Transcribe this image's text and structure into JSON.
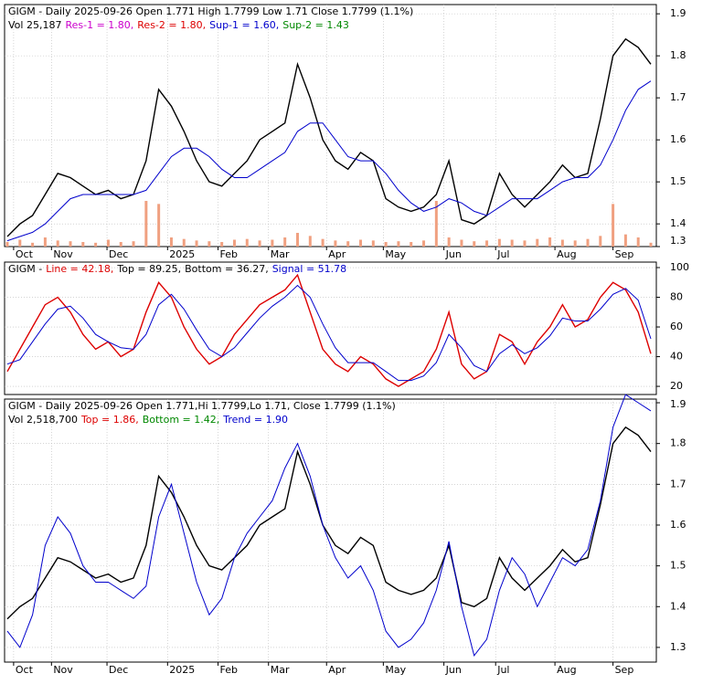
{
  "chart_data": [
    {
      "type": "line",
      "title": "GIGM - Daily 2025-09-26 Open 1.771  High 1.7799  Low 1.71  Close 1.7799 (1.1%)",
      "info": [
        {
          "text": "Vol 25,187",
          "color": "#000000"
        },
        {
          "text": "Res-1 = 1.80,",
          "color": "#cc00cc"
        },
        {
          "text": "Res-2 = 1.80,",
          "color": "#dd0000"
        },
        {
          "text": "Sup-1 = 1.60,",
          "color": "#0000cc"
        },
        {
          "text": "Sup-2 = 1.43",
          "color": "#008800"
        }
      ],
      "xlim": [
        0,
        51
      ],
      "ylim": [
        1.346,
        1.922
      ],
      "yticks": [
        1.3,
        1.4,
        1.5,
        1.6,
        1.7,
        1.8,
        1.9
      ],
      "grid": true,
      "xticks": [
        {
          "value": 0.5,
          "label": "Oct"
        },
        {
          "value": 3.5,
          "label": "Nov"
        },
        {
          "value": 7.9,
          "label": "Dec"
        },
        {
          "value": 12.7,
          "label": "2025"
        },
        {
          "value": 16.7,
          "label": "Feb"
        },
        {
          "value": 20.7,
          "label": "Mar"
        },
        {
          "value": 25.3,
          "label": "Apr"
        },
        {
          "value": 29.8,
          "label": "May"
        },
        {
          "value": 34.6,
          "label": "Jun"
        },
        {
          "value": 38.7,
          "label": "Jul"
        },
        {
          "value": 43.4,
          "label": "Aug"
        },
        {
          "value": 48.0,
          "label": "Sep"
        }
      ],
      "series": [
        {
          "color": "#000000",
          "values": [
            1.37,
            1.4,
            1.42,
            1.47,
            1.52,
            1.51,
            1.49,
            1.47,
            1.48,
            1.46,
            1.47,
            1.55,
            1.72,
            1.68,
            1.62,
            1.55,
            1.5,
            1.49,
            1.52,
            1.55,
            1.6,
            1.62,
            1.64,
            1.78,
            1.7,
            1.6,
            1.55,
            1.53,
            1.57,
            1.55,
            1.46,
            1.44,
            1.43,
            1.44,
            1.47,
            1.55,
            1.41,
            1.4,
            1.42,
            1.52,
            1.47,
            1.44,
            1.47,
            1.5,
            1.54,
            1.51,
            1.52,
            1.65,
            1.8,
            1.84,
            1.82,
            1.78
          ]
        },
        {
          "color": "#0000cc",
          "values": [
            1.36,
            1.37,
            1.38,
            1.4,
            1.43,
            1.46,
            1.47,
            1.47,
            1.47,
            1.47,
            1.47,
            1.48,
            1.52,
            1.56,
            1.58,
            1.58,
            1.56,
            1.53,
            1.51,
            1.51,
            1.53,
            1.55,
            1.57,
            1.62,
            1.64,
            1.64,
            1.6,
            1.56,
            1.55,
            1.55,
            1.52,
            1.48,
            1.45,
            1.43,
            1.44,
            1.46,
            1.45,
            1.43,
            1.42,
            1.44,
            1.46,
            1.46,
            1.46,
            1.48,
            1.5,
            1.51,
            1.51,
            1.54,
            1.6,
            1.67,
            1.72,
            1.74
          ]
        }
      ],
      "volume": {
        "color": "#f0a080",
        "values": [
          30000,
          45000,
          25000,
          60000,
          40000,
          35000,
          30000,
          25000,
          45000,
          30000,
          35000,
          300000,
          280000,
          60000,
          50000,
          40000,
          35000,
          30000,
          45000,
          50000,
          40000,
          45000,
          60000,
          90000,
          70000,
          50000,
          40000,
          35000,
          45000,
          40000,
          30000,
          35000,
          30000,
          40000,
          300000,
          60000,
          45000,
          35000,
          40000,
          50000,
          45000,
          40000,
          50000,
          60000,
          45000,
          40000,
          50000,
          70000,
          280000,
          80000,
          60000,
          25187
        ]
      }
    },
    {
      "type": "line",
      "info": [
        {
          "text": "GIGM -",
          "color": "#000000"
        },
        {
          "text": "Line = 42.18,",
          "color": "#dd0000"
        },
        {
          "text": "Top = 89.25,",
          "color": "#000000"
        },
        {
          "text": "Bottom = 36.27,",
          "color": "#000000"
        },
        {
          "text": "Signal = 51.78",
          "color": "#0000cc"
        }
      ],
      "xlim": [
        0,
        51
      ],
      "ylim": [
        14.5,
        103.7
      ],
      "yticks": [
        20,
        40,
        60,
        80,
        100
      ],
      "grid": true,
      "series": [
        {
          "color": "#dd0000",
          "values": [
            30,
            45,
            60,
            75,
            80,
            70,
            55,
            45,
            50,
            40,
            45,
            70,
            90,
            80,
            60,
            45,
            35,
            40,
            55,
            65,
            75,
            80,
            85,
            95,
            70,
            45,
            35,
            30,
            40,
            35,
            25,
            20,
            25,
            30,
            45,
            70,
            35,
            25,
            30,
            55,
            50,
            35,
            50,
            60,
            75,
            60,
            65,
            80,
            90,
            85,
            70,
            42
          ]
        },
        {
          "color": "#0000cc",
          "values": [
            35,
            38,
            50,
            62,
            72,
            74,
            66,
            55,
            50,
            46,
            45,
            55,
            75,
            82,
            72,
            58,
            45,
            40,
            46,
            56,
            66,
            74,
            80,
            88,
            80,
            62,
            46,
            36,
            36,
            36,
            30,
            24,
            24,
            27,
            36,
            55,
            46,
            34,
            30,
            42,
            48,
            42,
            46,
            54,
            66,
            64,
            64,
            72,
            82,
            86,
            78,
            52
          ]
        }
      ]
    },
    {
      "type": "line",
      "title": "GIGM - Daily 2025-09-26 Open 1.771,Hi 1.7799,Lo 1.71, Close 1.7799 (1.1%)",
      "info": [
        {
          "text": "Vol 2,518,700",
          "color": "#000000"
        },
        {
          "text": "Top = 1.86,",
          "color": "#dd0000"
        },
        {
          "text": "Bottom = 1.42,",
          "color": "#008800"
        },
        {
          "text": "Trend = 1.90",
          "color": "#0000cc"
        }
      ],
      "xlim": [
        0,
        51
      ],
      "ylim": [
        1.264,
        1.909
      ],
      "yticks": [
        1.3,
        1.4,
        1.5,
        1.6,
        1.7,
        1.8,
        1.9
      ],
      "grid": true,
      "xticks": [
        {
          "value": 0.5,
          "label": "Oct"
        },
        {
          "value": 3.5,
          "label": "Nov"
        },
        {
          "value": 7.9,
          "label": "Dec"
        },
        {
          "value": 12.7,
          "label": "2025"
        },
        {
          "value": 16.7,
          "label": "Feb"
        },
        {
          "value": 20.7,
          "label": "Mar"
        },
        {
          "value": 25.3,
          "label": "Apr"
        },
        {
          "value": 29.8,
          "label": "May"
        },
        {
          "value": 34.6,
          "label": "Jun"
        },
        {
          "value": 38.7,
          "label": "Jul"
        },
        {
          "value": 43.4,
          "label": "Aug"
        },
        {
          "value": 48.0,
          "label": "Sep"
        }
      ],
      "series": [
        {
          "color": "#000000",
          "values": [
            1.37,
            1.4,
            1.42,
            1.47,
            1.52,
            1.51,
            1.49,
            1.47,
            1.48,
            1.46,
            1.47,
            1.55,
            1.72,
            1.68,
            1.62,
            1.55,
            1.5,
            1.49,
            1.52,
            1.55,
            1.6,
            1.62,
            1.64,
            1.78,
            1.7,
            1.6,
            1.55,
            1.53,
            1.57,
            1.55,
            1.46,
            1.44,
            1.43,
            1.44,
            1.47,
            1.55,
            1.41,
            1.4,
            1.42,
            1.52,
            1.47,
            1.44,
            1.47,
            1.5,
            1.54,
            1.51,
            1.52,
            1.65,
            1.8,
            1.84,
            1.82,
            1.78
          ]
        },
        {
          "color": "#0000cc",
          "values": [
            1.34,
            1.3,
            1.38,
            1.55,
            1.62,
            1.58,
            1.5,
            1.46,
            1.46,
            1.44,
            1.42,
            1.45,
            1.62,
            1.7,
            1.58,
            1.46,
            1.38,
            1.42,
            1.52,
            1.58,
            1.62,
            1.66,
            1.74,
            1.8,
            1.72,
            1.6,
            1.52,
            1.47,
            1.5,
            1.44,
            1.34,
            1.3,
            1.32,
            1.36,
            1.44,
            1.56,
            1.4,
            1.28,
            1.32,
            1.44,
            1.52,
            1.48,
            1.4,
            1.46,
            1.52,
            1.5,
            1.54,
            1.66,
            1.84,
            1.92,
            1.9,
            1.88
          ]
        }
      ]
    }
  ]
}
